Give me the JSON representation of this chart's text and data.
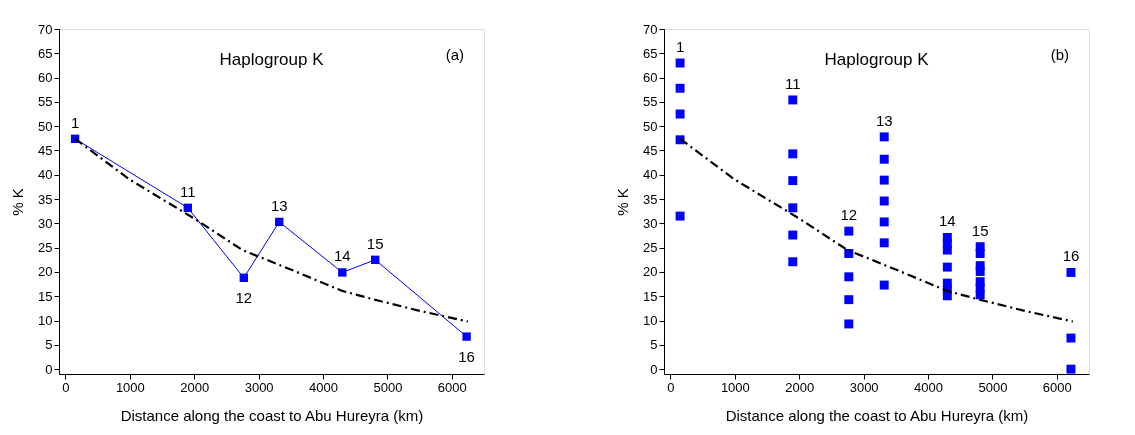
{
  "chart_data": [
    {
      "type": "line",
      "title": "Haplogroup K",
      "xlabel": "Distance along the coast to Abu Hureyra (km)",
      "ylabel": "% K",
      "xlim": [
        -100,
        6500
      ],
      "ylim": [
        -1,
        70
      ],
      "xticks": [
        0,
        1000,
        2000,
        3000,
        4000,
        5000,
        6000
      ],
      "yticks": [
        0,
        5,
        10,
        15,
        20,
        25,
        30,
        35,
        40,
        45,
        50,
        55,
        60,
        65,
        70
      ],
      "grid": false,
      "series": [
        {
          "color": "#0000ff",
          "marker": "square",
          "line_style": "solid",
          "x": [
            150,
            1900,
            2770,
            3320,
            4300,
            4810,
            6230
          ],
          "values": [
            47.4,
            33.2,
            18.8,
            30.3,
            19.9,
            22.5,
            6.7
          ]
        },
        {
          "color": "#000000",
          "marker": "none",
          "line_style": "dashed",
          "x": [
            150,
            1000,
            2000,
            2750,
            3500,
            4300,
            4800,
            5500,
            6250
          ],
          "values": [
            47.4,
            39,
            31,
            24.5,
            20.5,
            16.1,
            14.3,
            12,
            9.8
          ]
        }
      ],
      "annotations": [
        {
          "text": "1",
          "x": 150,
          "y": 47.4
        },
        {
          "text": "11",
          "x": 1900,
          "y": 33.2
        },
        {
          "text": "12",
          "x": 2770,
          "y": 18.8
        },
        {
          "text": "13",
          "x": 3320,
          "y": 30.3
        },
        {
          "text": "14",
          "x": 4300,
          "y": 19.9
        },
        {
          "text": "15",
          "x": 4810,
          "y": 22.5
        },
        {
          "text": "16",
          "x": 6230,
          "y": 6.7
        },
        "(a)"
      ]
    },
    {
      "type": "scatter",
      "title": "Haplogroup K",
      "xlabel": "Distance along the coast to Abu Hureyra (km)",
      "ylabel": "% K",
      "xlim": [
        -100,
        6500
      ],
      "ylim": [
        -1,
        70
      ],
      "xticks": [
        0,
        1000,
        2000,
        3000,
        4000,
        5000,
        6000
      ],
      "yticks": [
        0,
        5,
        10,
        15,
        20,
        25,
        30,
        35,
        40,
        45,
        50,
        55,
        60,
        65,
        70
      ],
      "grid": false,
      "series": [
        {
          "color": "#0000ff",
          "marker": "square",
          "x": [
            150,
            150,
            150,
            150,
            150,
            1900,
            1900,
            1900,
            1900,
            1900,
            1900,
            2770,
            2770,
            2770,
            2770,
            2770,
            3320,
            3320,
            3320,
            3320,
            3320,
            3320,
            3320,
            4300,
            4300,
            4300,
            4300,
            4300,
            4300,
            4300,
            4810,
            4810,
            4810,
            4810,
            4810,
            4810,
            4810,
            6220,
            6220,
            6220
          ],
          "values": [
            63.0,
            57.8,
            52.5,
            47.2,
            31.5,
            55.4,
            44.3,
            38.8,
            33.2,
            27.6,
            22.1,
            28.4,
            23.8,
            19.0,
            14.3,
            9.3,
            47.8,
            43.2,
            38.9,
            34.6,
            30.3,
            26.0,
            17.3,
            27.1,
            25.9,
            24.5,
            21.0,
            17.7,
            16.3,
            15.1,
            25.2,
            23.8,
            21.3,
            20.1,
            18.0,
            16.7,
            15.3,
            19.9,
            6.4,
            0
          ]
        },
        {
          "type": "line",
          "color": "#000000",
          "marker": "none",
          "line_style": "dashed",
          "x": [
            150,
            1000,
            2000,
            2750,
            3500,
            4300,
            4800,
            5500,
            6250
          ],
          "values": [
            47.4,
            39,
            31,
            24.5,
            20.5,
            16.1,
            14.3,
            12,
            9.8
          ]
        }
      ],
      "annotations": [
        {
          "text": "1",
          "x": 150,
          "y": 63.0
        },
        {
          "text": "11",
          "x": 1900,
          "y": 55.4
        },
        {
          "text": "12",
          "x": 2770,
          "y": 28.4
        },
        {
          "text": "13",
          "x": 3320,
          "y": 47.8
        },
        {
          "text": "14",
          "x": 4300,
          "y": 27.1
        },
        {
          "text": "15",
          "x": 4810,
          "y": 25.2
        },
        {
          "text": "16",
          "x": 6220,
          "y": 19.9
        },
        "(b)"
      ]
    }
  ]
}
